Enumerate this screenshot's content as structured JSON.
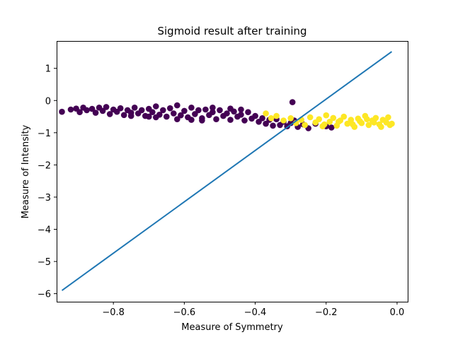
{
  "chart_data": {
    "type": "scatter",
    "title": "Sigmoid result after training",
    "xlabel": "Measure of Symmetry",
    "ylabel": "Measure of Intensity",
    "xlim": [
      -0.96,
      0.03
    ],
    "ylim": [
      -6.25,
      1.85
    ],
    "xticks": [
      -0.8,
      -0.6,
      -0.4,
      -0.2,
      0.0
    ],
    "xtick_labels": [
      "−0.8",
      "−0.6",
      "−0.4",
      "−0.2",
      "0.0"
    ],
    "yticks": [
      1,
      0,
      -1,
      -2,
      -3,
      -4,
      -5,
      -6
    ],
    "ytick_labels": [
      "1",
      "0",
      "−1",
      "−2",
      "−3",
      "−4",
      "−5",
      "−6"
    ],
    "grid": false,
    "colors": {
      "class_0": "#440154",
      "class_1": "#fde725",
      "line": "#1f77b4"
    },
    "series": [
      {
        "class": 0,
        "points": [
          [
            -0.945,
            -0.35
          ],
          [
            -0.92,
            -0.28
          ],
          [
            -0.905,
            -0.25
          ],
          [
            -0.895,
            -0.36
          ],
          [
            -0.885,
            -0.22
          ],
          [
            -0.875,
            -0.3
          ],
          [
            -0.86,
            -0.26
          ],
          [
            -0.85,
            -0.38
          ],
          [
            -0.84,
            -0.22
          ],
          [
            -0.83,
            -0.32
          ],
          [
            -0.82,
            -0.2
          ],
          [
            -0.81,
            -0.42
          ],
          [
            -0.8,
            -0.28
          ],
          [
            -0.79,
            -0.35
          ],
          [
            -0.78,
            -0.24
          ],
          [
            -0.77,
            -0.45
          ],
          [
            -0.76,
            -0.3
          ],
          [
            -0.75,
            -0.38
          ],
          [
            -0.74,
            -0.22
          ],
          [
            -0.73,
            -0.4
          ],
          [
            -0.72,
            -0.3
          ],
          [
            -0.71,
            -0.48
          ],
          [
            -0.7,
            -0.26
          ],
          [
            -0.69,
            -0.36
          ],
          [
            -0.68,
            -0.18
          ],
          [
            -0.67,
            -0.44
          ],
          [
            -0.66,
            -0.3
          ],
          [
            -0.65,
            -0.5
          ],
          [
            -0.64,
            -0.24
          ],
          [
            -0.63,
            -0.4
          ],
          [
            -0.62,
            -0.15
          ],
          [
            -0.61,
            -0.46
          ],
          [
            -0.6,
            -0.32
          ],
          [
            -0.59,
            -0.52
          ],
          [
            -0.58,
            -0.22
          ],
          [
            -0.57,
            -0.42
          ],
          [
            -0.56,
            -0.3
          ],
          [
            -0.55,
            -0.55
          ],
          [
            -0.54,
            -0.28
          ],
          [
            -0.53,
            -0.45
          ],
          [
            -0.52,
            -0.36
          ],
          [
            -0.51,
            -0.58
          ],
          [
            -0.5,
            -0.3
          ],
          [
            -0.49,
            -0.48
          ],
          [
            -0.48,
            -0.4
          ],
          [
            -0.47,
            -0.6
          ],
          [
            -0.46,
            -0.34
          ],
          [
            -0.45,
            -0.5
          ],
          [
            -0.44,
            -0.44
          ],
          [
            -0.43,
            -0.62
          ],
          [
            -0.42,
            -0.36
          ],
          [
            -0.41,
            -0.56
          ],
          [
            -0.4,
            -0.48
          ],
          [
            -0.39,
            -0.66
          ],
          [
            -0.38,
            -0.55
          ],
          [
            -0.37,
            -0.72
          ],
          [
            -0.36,
            -0.6
          ],
          [
            -0.35,
            -0.78
          ],
          [
            -0.34,
            -0.58
          ],
          [
            -0.33,
            -0.76
          ],
          [
            -0.32,
            -0.66
          ],
          [
            -0.31,
            -0.8
          ],
          [
            -0.3,
            -0.7
          ],
          [
            -0.29,
            -0.62
          ],
          [
            -0.28,
            -0.82
          ],
          [
            -0.265,
            -0.74
          ],
          [
            -0.25,
            -0.86
          ],
          [
            -0.23,
            -0.72
          ],
          [
            -0.2,
            -0.8
          ],
          [
            -0.185,
            -0.84
          ],
          [
            -0.295,
            -0.05
          ],
          [
            -0.68,
            -0.52
          ],
          [
            -0.62,
            -0.58
          ],
          [
            -0.58,
            -0.6
          ],
          [
            -0.52,
            -0.22
          ],
          [
            -0.47,
            -0.25
          ],
          [
            -0.44,
            -0.28
          ],
          [
            -0.55,
            -0.62
          ],
          [
            -0.7,
            -0.5
          ],
          [
            -0.75,
            -0.48
          ]
        ]
      },
      {
        "class": 1,
        "points": [
          [
            -0.37,
            -0.4
          ],
          [
            -0.355,
            -0.55
          ],
          [
            -0.34,
            -0.48
          ],
          [
            -0.32,
            -0.62
          ],
          [
            -0.3,
            -0.55
          ],
          [
            -0.285,
            -0.7
          ],
          [
            -0.27,
            -0.6
          ],
          [
            -0.26,
            -0.76
          ],
          [
            -0.245,
            -0.52
          ],
          [
            -0.23,
            -0.68
          ],
          [
            -0.22,
            -0.58
          ],
          [
            -0.21,
            -0.8
          ],
          [
            -0.2,
            -0.46
          ],
          [
            -0.19,
            -0.66
          ],
          [
            -0.18,
            -0.54
          ],
          [
            -0.17,
            -0.78
          ],
          [
            -0.16,
            -0.62
          ],
          [
            -0.15,
            -0.5
          ],
          [
            -0.14,
            -0.72
          ],
          [
            -0.13,
            -0.6
          ],
          [
            -0.12,
            -0.82
          ],
          [
            -0.11,
            -0.56
          ],
          [
            -0.1,
            -0.7
          ],
          [
            -0.09,
            -0.48
          ],
          [
            -0.08,
            -0.76
          ],
          [
            -0.07,
            -0.62
          ],
          [
            -0.06,
            -0.54
          ],
          [
            -0.05,
            -0.74
          ],
          [
            -0.04,
            -0.6
          ],
          [
            -0.03,
            -0.68
          ],
          [
            -0.02,
            -0.76
          ],
          [
            -0.015,
            -0.72
          ],
          [
            -0.025,
            -0.52
          ],
          [
            -0.045,
            -0.82
          ],
          [
            -0.085,
            -0.58
          ],
          [
            -0.125,
            -0.74
          ],
          [
            -0.165,
            -0.66
          ],
          [
            -0.205,
            -0.74
          ],
          [
            -0.105,
            -0.64
          ],
          [
            -0.065,
            -0.68
          ]
        ]
      }
    ],
    "line": {
      "x": [
        -0.945,
        -0.015
      ],
      "y": [
        -5.9,
        1.52
      ]
    }
  }
}
